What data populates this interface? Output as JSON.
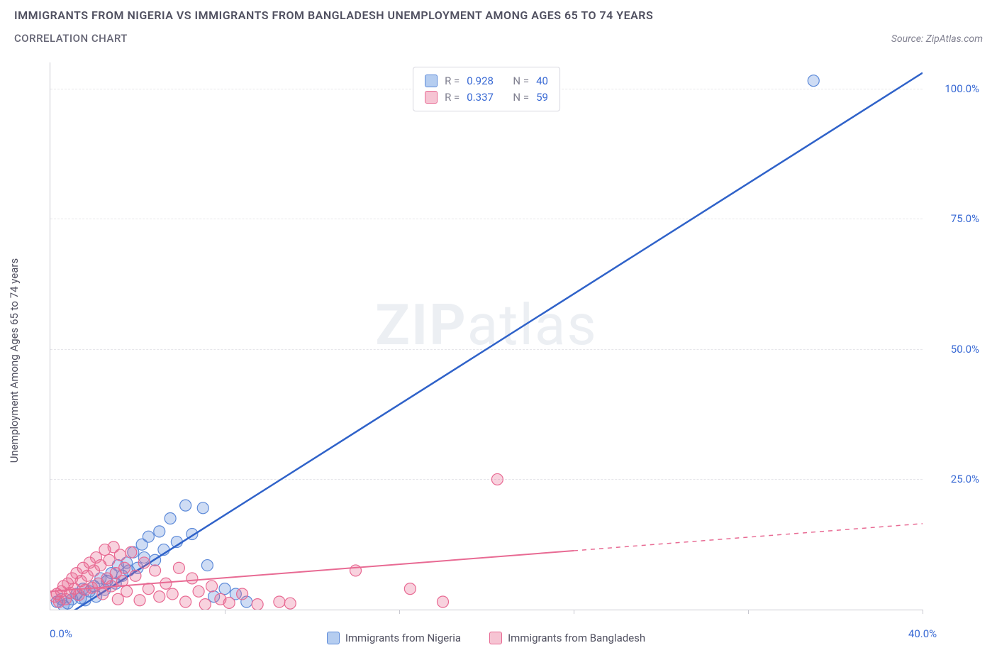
{
  "title": "IMMIGRANTS FROM NIGERIA VS IMMIGRANTS FROM BANGLADESH UNEMPLOYMENT AMONG AGES 65 TO 74 YEARS",
  "subtitle": "CORRELATION CHART",
  "source": "Source: ZipAtlas.com",
  "watermark_bold": "ZIP",
  "watermark_light": "atlas",
  "y_axis_title": "Unemployment Among Ages 65 to 74 years",
  "chart": {
    "type": "scatter-with-regression",
    "xlim": [
      0,
      40
    ],
    "ylim": [
      0,
      105
    ],
    "x_ticks": [
      0,
      8,
      16,
      24,
      32,
      40
    ],
    "x_tick_labels": {
      "0": "0.0%",
      "40": "40.0%"
    },
    "y_gridlines": [
      25,
      50,
      75,
      100
    ],
    "y_tick_labels": {
      "25": "25.0%",
      "50": "50.0%",
      "75": "75.0%",
      "100": "100.0%"
    },
    "background_color": "#ffffff",
    "grid_color": "#e6e6ea",
    "axis_color": "#c8c8d0",
    "tick_label_color": "#3869d4",
    "series": [
      {
        "name": "Immigrants from Nigeria",
        "marker_fill": "rgba(93,138,217,0.30)",
        "marker_stroke": "#5d8ad9",
        "line_color": "#2f62c9",
        "line_dash": "none",
        "swatch_fill": "#b5cdf0",
        "swatch_border": "#5d8ad9",
        "R": "0.928",
        "N": "40",
        "regression": {
          "x1": 0.4,
          "y1": -2,
          "x2": 40,
          "y2": 103
        },
        "points": [
          [
            0.3,
            1.5
          ],
          [
            0.5,
            2.0
          ],
          [
            0.6,
            0.8
          ],
          [
            0.8,
            1.2
          ],
          [
            1.0,
            2.0
          ],
          [
            1.2,
            3.0
          ],
          [
            1.4,
            2.2
          ],
          [
            1.5,
            4.0
          ],
          [
            1.6,
            1.8
          ],
          [
            1.8,
            3.5
          ],
          [
            2.0,
            4.5
          ],
          [
            2.1,
            2.5
          ],
          [
            2.3,
            6.0
          ],
          [
            2.5,
            3.8
          ],
          [
            2.6,
            5.5
          ],
          [
            2.8,
            7.0
          ],
          [
            3.0,
            5.0
          ],
          [
            3.1,
            8.5
          ],
          [
            3.3,
            6.5
          ],
          [
            3.5,
            9.0
          ],
          [
            3.6,
            7.5
          ],
          [
            3.8,
            11.0
          ],
          [
            4.0,
            8.0
          ],
          [
            4.2,
            12.5
          ],
          [
            4.3,
            10.0
          ],
          [
            4.5,
            14.0
          ],
          [
            4.8,
            9.5
          ],
          [
            5.0,
            15.0
          ],
          [
            5.2,
            11.5
          ],
          [
            5.5,
            17.5
          ],
          [
            5.8,
            13.0
          ],
          [
            6.2,
            20.0
          ],
          [
            6.5,
            14.5
          ],
          [
            7.0,
            19.5
          ],
          [
            7.2,
            8.5
          ],
          [
            7.5,
            2.5
          ],
          [
            8.0,
            4.0
          ],
          [
            8.5,
            3.0
          ],
          [
            9.0,
            1.5
          ],
          [
            35.0,
            101.5
          ]
        ]
      },
      {
        "name": "Immigrants from Bangladesh",
        "marker_fill": "rgba(232,106,147,0.30)",
        "marker_stroke": "#e86a93",
        "line_color": "#e86a93",
        "line_dash_solid_until_x": 24,
        "swatch_fill": "#f6c4d3",
        "swatch_border": "#e86a93",
        "R": "0.337",
        "N": "59",
        "regression": {
          "x1": 0,
          "y1": 3.5,
          "x2": 40,
          "y2": 16.5
        },
        "points": [
          [
            0.2,
            2.5
          ],
          [
            0.3,
            3.0
          ],
          [
            0.4,
            1.5
          ],
          [
            0.5,
            3.5
          ],
          [
            0.6,
            4.5
          ],
          [
            0.7,
            2.0
          ],
          [
            0.8,
            5.0
          ],
          [
            0.9,
            3.2
          ],
          [
            1.0,
            6.0
          ],
          [
            1.1,
            4.0
          ],
          [
            1.2,
            7.0
          ],
          [
            1.3,
            2.8
          ],
          [
            1.4,
            5.5
          ],
          [
            1.5,
            8.0
          ],
          [
            1.6,
            3.8
          ],
          [
            1.7,
            6.5
          ],
          [
            1.8,
            9.0
          ],
          [
            1.9,
            4.2
          ],
          [
            2.0,
            7.5
          ],
          [
            2.1,
            10.0
          ],
          [
            2.2,
            5.0
          ],
          [
            2.3,
            8.5
          ],
          [
            2.4,
            3.0
          ],
          [
            2.5,
            11.5
          ],
          [
            2.6,
            6.0
          ],
          [
            2.7,
            9.5
          ],
          [
            2.8,
            4.5
          ],
          [
            2.9,
            12.0
          ],
          [
            3.0,
            7.0
          ],
          [
            3.1,
            2.0
          ],
          [
            3.2,
            10.5
          ],
          [
            3.3,
            5.5
          ],
          [
            3.4,
            8.0
          ],
          [
            3.5,
            3.5
          ],
          [
            3.7,
            11.0
          ],
          [
            3.9,
            6.5
          ],
          [
            4.1,
            1.8
          ],
          [
            4.3,
            9.0
          ],
          [
            4.5,
            4.0
          ],
          [
            4.8,
            7.5
          ],
          [
            5.0,
            2.5
          ],
          [
            5.3,
            5.0
          ],
          [
            5.6,
            3.0
          ],
          [
            5.9,
            8.0
          ],
          [
            6.2,
            1.5
          ],
          [
            6.5,
            6.0
          ],
          [
            6.8,
            3.5
          ],
          [
            7.1,
            1.0
          ],
          [
            7.4,
            4.5
          ],
          [
            7.8,
            2.0
          ],
          [
            8.2,
            1.3
          ],
          [
            8.8,
            3.0
          ],
          [
            9.5,
            1.0
          ],
          [
            10.5,
            1.5
          ],
          [
            11.0,
            1.2
          ],
          [
            14.0,
            7.5
          ],
          [
            16.5,
            4.0
          ],
          [
            18.0,
            1.5
          ],
          [
            20.5,
            25.0
          ]
        ]
      }
    ]
  }
}
